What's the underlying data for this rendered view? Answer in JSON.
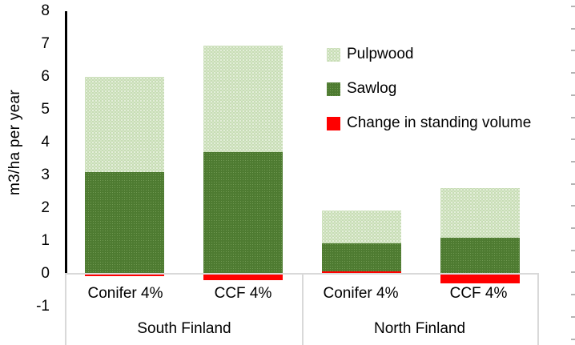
{
  "chart_data": {
    "type": "bar",
    "stacked": true,
    "title": "",
    "ylabel": "m3/ha per year",
    "xlabel": "",
    "categories": [
      "Conifer 4%",
      "CCF 4%",
      "Conifer 4%",
      "CCF 4%"
    ],
    "group_labels": [
      "South Finland",
      "North Finland"
    ],
    "series": [
      {
        "name": "Pulpwood",
        "color": "#c7ddb5",
        "pattern": "dotted",
        "values": [
          2.9,
          3.25,
          1.0,
          1.5
        ]
      },
      {
        "name": "Sawlog",
        "color": "#4e7b31",
        "pattern": "dotted-subtle",
        "values": [
          3.1,
          3.7,
          0.85,
          1.1
        ]
      },
      {
        "name": "Change in standing volume",
        "color": "#ff0000",
        "pattern": "solid",
        "values": [
          -0.08,
          -0.2,
          0.07,
          -0.3
        ]
      }
    ],
    "stack_order_bottom_to_top": [
      "Change in standing volume",
      "Sawlog",
      "Pulpwood"
    ],
    "bar_totals_positive": [
      6.0,
      6.95,
      1.92,
      2.6
    ],
    "yticks": [
      8,
      7,
      6,
      5,
      4,
      3,
      2,
      1,
      0,
      -1
    ],
    "ylim": [
      -1,
      8
    ],
    "gridlines": false,
    "legend": {
      "position": "upper-right-inside",
      "entries": [
        "Pulpwood",
        "Sawlog",
        "Change in standing volume"
      ]
    },
    "axis_colors": {
      "axis_line": "#000000",
      "category_box_border": "#d9d9d9",
      "right_edge_dashes": "#b3b3b3"
    }
  }
}
